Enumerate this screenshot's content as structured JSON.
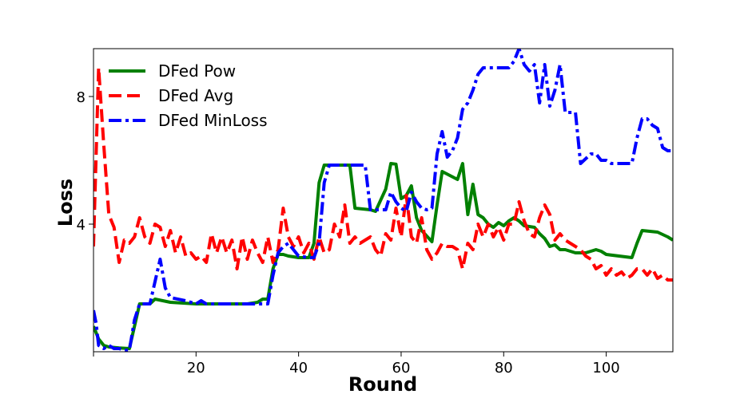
{
  "chart_data": {
    "type": "line",
    "title": "",
    "xlabel": "Round",
    "ylabel": "Loss",
    "xlim": [
      0,
      113
    ],
    "ylim": [
      0,
      9.5
    ],
    "xticks": [
      0,
      20,
      40,
      60,
      80,
      100
    ],
    "xtick_labels": [
      "",
      "20",
      "40",
      "60",
      "80",
      "100"
    ],
    "yticks": [
      4,
      8
    ],
    "ytick_labels": [
      "4",
      "8"
    ],
    "grid": false,
    "legend_position": "top-left",
    "series": [
      {
        "name": "DFed Pow",
        "color": "#008000",
        "dash": "solid",
        "x": [
          0,
          1,
          2,
          3,
          5,
          7,
          9,
          11,
          12,
          15,
          20,
          25,
          30,
          32,
          33,
          34,
          35,
          36,
          37,
          38,
          40,
          42,
          43,
          44,
          45,
          46,
          48,
          50,
          51,
          54,
          55,
          57,
          58,
          59,
          60,
          61,
          62,
          63,
          64,
          66,
          67,
          68,
          71,
          72,
          73,
          74,
          75,
          76,
          77,
          78,
          79,
          80,
          81,
          82,
          83,
          84,
          86,
          87,
          88,
          89,
          90,
          91,
          92,
          93,
          94,
          95,
          96,
          97,
          98,
          99,
          100,
          105,
          106,
          107,
          110,
          112,
          113
        ],
        "y": [
          0.8,
          0.4,
          0.2,
          0.15,
          0.12,
          0.1,
          1.5,
          1.5,
          1.65,
          1.55,
          1.5,
          1.5,
          1.5,
          1.55,
          1.65,
          1.65,
          2.6,
          3.05,
          3.05,
          3.0,
          2.95,
          2.95,
          3.4,
          5.3,
          5.85,
          5.85,
          5.85,
          5.85,
          4.5,
          4.45,
          4.4,
          5.1,
          5.9,
          5.88,
          4.8,
          4.9,
          5.2,
          4.2,
          3.8,
          3.45,
          4.6,
          5.65,
          5.4,
          5.9,
          4.3,
          5.25,
          4.3,
          4.2,
          4.0,
          3.9,
          4.05,
          3.95,
          4.1,
          4.2,
          4.1,
          3.95,
          3.9,
          3.7,
          3.55,
          3.3,
          3.35,
          3.2,
          3.2,
          3.15,
          3.1,
          3.1,
          3.1,
          3.15,
          3.2,
          3.15,
          3.05,
          2.95,
          3.4,
          3.8,
          3.75,
          3.6,
          3.5
        ]
      },
      {
        "name": "DFed Avg",
        "color": "#ff0000",
        "dash": "dashed",
        "x": [
          0,
          1,
          2,
          3,
          4,
          5,
          6,
          7,
          8,
          9,
          10,
          11,
          12,
          13,
          14,
          15,
          16,
          17,
          18,
          19,
          20,
          21,
          22,
          23,
          24,
          25,
          26,
          27,
          28,
          29,
          30,
          31,
          32,
          33,
          34,
          35,
          36,
          37,
          38,
          39,
          40,
          41,
          42,
          43,
          44,
          45,
          46,
          47,
          48,
          49,
          50,
          51,
          52,
          53,
          54,
          55,
          56,
          57,
          58,
          59,
          60,
          61,
          62,
          63,
          64,
          65,
          66,
          67,
          68,
          69,
          70,
          71,
          72,
          73,
          74,
          75,
          76,
          77,
          78,
          79,
          80,
          81,
          82,
          83,
          84,
          85,
          86,
          87,
          88,
          89,
          90,
          91,
          92,
          93,
          94,
          95,
          96,
          97,
          98,
          99,
          100,
          101,
          102,
          103,
          104,
          105,
          106,
          107,
          108,
          109,
          110,
          111,
          112,
          113
        ],
        "y": [
          3.3,
          8.9,
          6.5,
          4.3,
          3.9,
          2.8,
          3.5,
          3.4,
          3.6,
          4.2,
          3.6,
          3.4,
          4.0,
          3.9,
          3.3,
          3.8,
          3.1,
          3.6,
          3.0,
          3.1,
          2.9,
          3.0,
          2.8,
          3.7,
          3.1,
          3.6,
          3.1,
          3.5,
          2.6,
          3.6,
          2.9,
          3.5,
          3.1,
          2.8,
          3.6,
          2.8,
          3.2,
          4.5,
          3.6,
          3.3,
          3.6,
          3.1,
          3.4,
          2.9,
          3.6,
          3.1,
          3.2,
          4.0,
          3.6,
          4.6,
          3.4,
          3.6,
          3.4,
          3.5,
          3.6,
          3.2,
          3.0,
          3.7,
          3.5,
          4.5,
          3.6,
          4.9,
          3.6,
          3.4,
          4.2,
          3.2,
          2.9,
          3.1,
          3.4,
          3.3,
          3.3,
          3.2,
          2.6,
          3.4,
          3.2,
          4.0,
          3.6,
          4.0,
          3.6,
          3.9,
          3.5,
          4.0,
          4.0,
          4.7,
          4.1,
          3.7,
          3.6,
          4.2,
          4.6,
          4.3,
          3.5,
          3.7,
          3.5,
          3.4,
          3.3,
          3.2,
          3.0,
          2.9,
          2.6,
          2.7,
          2.4,
          2.6,
          2.4,
          2.5,
          2.3,
          2.4,
          2.6,
          2.6,
          2.4,
          2.6,
          2.3,
          2.4,
          2.25,
          2.25
        ]
      },
      {
        "name": "DFed MinLoss",
        "color": "#0000ff",
        "dash": "dashdot",
        "x": [
          0,
          0.5,
          1,
          2,
          3,
          4,
          5,
          6,
          7,
          8,
          9,
          10,
          11,
          12,
          13,
          14,
          15,
          18,
          20,
          21,
          22,
          25,
          30,
          34,
          35,
          36,
          37,
          38,
          40,
          42,
          43,
          44,
          45,
          46,
          47,
          49,
          50,
          52,
          53,
          54,
          55,
          56,
          57,
          58,
          59,
          60,
          61,
          62,
          63,
          64,
          65,
          66,
          67,
          68,
          69,
          70,
          71,
          72,
          73,
          74,
          75,
          76,
          77,
          78,
          79,
          80,
          81,
          82,
          83,
          84,
          85,
          86,
          87,
          88,
          89,
          90,
          91,
          92,
          93,
          94,
          95,
          97,
          98,
          99,
          100,
          101,
          102,
          103,
          104,
          105,
          106,
          107,
          108,
          109,
          110,
          111,
          112,
          113
        ],
        "y": [
          1.3,
          0.9,
          0.2,
          0.1,
          0.2,
          0.1,
          0.1,
          0.05,
          0.05,
          1.0,
          1.5,
          1.5,
          1.5,
          2.2,
          2.9,
          2.0,
          1.7,
          1.6,
          1.5,
          1.6,
          1.5,
          1.5,
          1.5,
          1.5,
          2.4,
          3.1,
          3.3,
          3.4,
          3.0,
          2.95,
          2.95,
          3.4,
          5.3,
          5.85,
          5.85,
          5.85,
          5.85,
          5.85,
          5.85,
          4.45,
          4.45,
          4.45,
          4.45,
          5.0,
          4.7,
          4.5,
          4.4,
          5.0,
          4.7,
          4.5,
          4.45,
          4.5,
          6.2,
          6.9,
          6.1,
          6.3,
          6.7,
          7.6,
          7.8,
          8.2,
          8.7,
          8.9,
          8.9,
          8.9,
          8.9,
          8.9,
          8.9,
          9.1,
          9.5,
          9.0,
          8.8,
          9.0,
          7.8,
          9.0,
          7.7,
          8.2,
          9.0,
          7.5,
          7.5,
          7.5,
          5.9,
          6.2,
          6.2,
          6.0,
          6.0,
          5.9,
          5.9,
          5.9,
          5.9,
          5.9,
          6.7,
          7.3,
          7.3,
          7.1,
          7.0,
          6.4,
          6.3,
          6.3
        ]
      }
    ]
  }
}
